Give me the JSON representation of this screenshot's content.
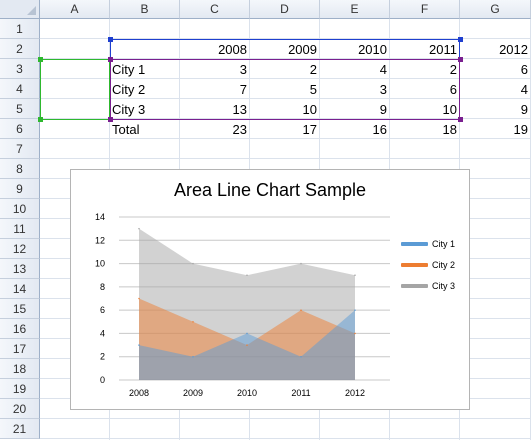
{
  "columns": [
    "A",
    "B",
    "C",
    "D",
    "E",
    "F",
    "G"
  ],
  "rows": [
    "1",
    "2",
    "3",
    "4",
    "5",
    "6",
    "7",
    "8",
    "9",
    "10",
    "11",
    "12",
    "13",
    "14",
    "15",
    "16",
    "17",
    "18",
    "19",
    "20",
    "21"
  ],
  "table": {
    "header_years": [
      "2008",
      "2009",
      "2010",
      "2011",
      "2012"
    ],
    "data_rows": [
      {
        "label": "City 1",
        "values": [
          "3",
          "2",
          "4",
          "2",
          "6"
        ]
      },
      {
        "label": "City 2",
        "values": [
          "7",
          "5",
          "3",
          "6",
          "4"
        ]
      },
      {
        "label": "City 3",
        "values": [
          "13",
          "10",
          "9",
          "10",
          "9"
        ]
      }
    ],
    "total_row": {
      "label": "Total",
      "values": [
        "23",
        "17",
        "16",
        "18",
        "19"
      ]
    }
  },
  "colors": {
    "selection_green": "#2eb82e",
    "selection_blue": "#1f3fcf",
    "selection_purple": "#7a1f8f",
    "city1": "#5b9bd5",
    "city2": "#ed7d31",
    "city3": "#a5a5a5"
  },
  "chart_data": {
    "type": "area",
    "title": "Area Line Chart Sample",
    "categories": [
      "2008",
      "2009",
      "2010",
      "2011",
      "2012"
    ],
    "series": [
      {
        "name": "City 1",
        "values": [
          3,
          2,
          4,
          2,
          6
        ]
      },
      {
        "name": "City 2",
        "values": [
          7,
          5,
          3,
          6,
          4
        ]
      },
      {
        "name": "City 3",
        "values": [
          13,
          10,
          9,
          10,
          9
        ]
      }
    ],
    "ylim": [
      0,
      14
    ],
    "yticks": [
      "0",
      "2",
      "4",
      "6",
      "8",
      "10",
      "12",
      "14"
    ],
    "grid": true,
    "legend_position": "right"
  }
}
